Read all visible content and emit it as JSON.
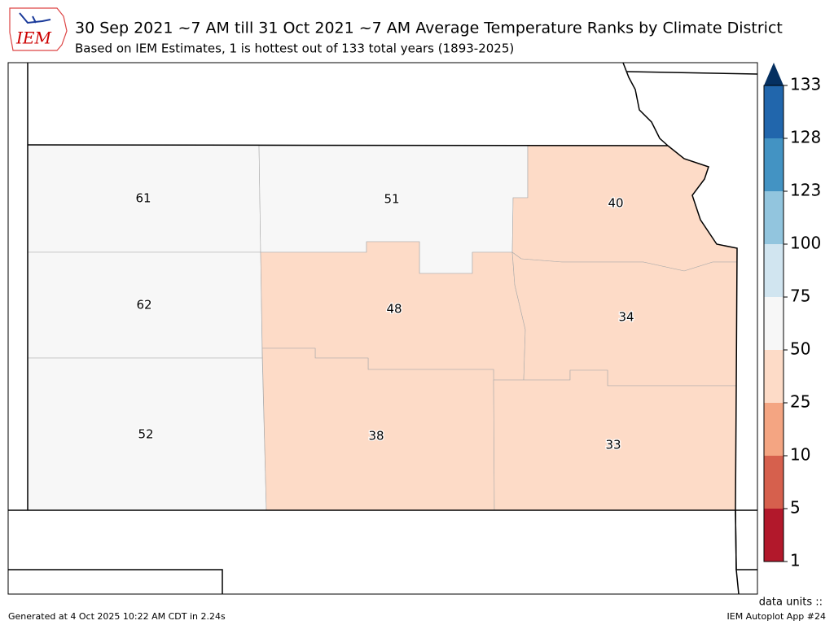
{
  "header": {
    "logo": "IEM",
    "title": "30 Sep 2021 ~7 AM till 31 Oct 2021 ~7 AM Average Temperature Ranks by Climate District",
    "subtitle": "Based on IEM Estimates, 1 is hottest out of 133 total years (1893-2025)"
  },
  "districts": [
    {
      "rank": 61
    },
    {
      "rank": 62
    },
    {
      "rank": 52
    },
    {
      "rank": 51
    },
    {
      "rank": 48
    },
    {
      "rank": 38
    },
    {
      "rank": 40
    },
    {
      "rank": 34
    },
    {
      "rank": 33
    }
  ],
  "colorbar": {
    "bounds": [
      1,
      5,
      10,
      25,
      50,
      75,
      100,
      123,
      128,
      133
    ],
    "colors": [
      "#b2182b",
      "#d6604d",
      "#f4a582",
      "#fddbc7",
      "#f7f7f7",
      "#d1e5f0",
      "#92c5de",
      "#4393c3",
      "#2166ac"
    ],
    "extend_color": "#053061"
  },
  "footer": {
    "generated": "Generated at 4 Oct 2025 10:22 AM CDT in 2.24s",
    "units": "data units ::",
    "app": "IEM Autoplot App #24"
  }
}
